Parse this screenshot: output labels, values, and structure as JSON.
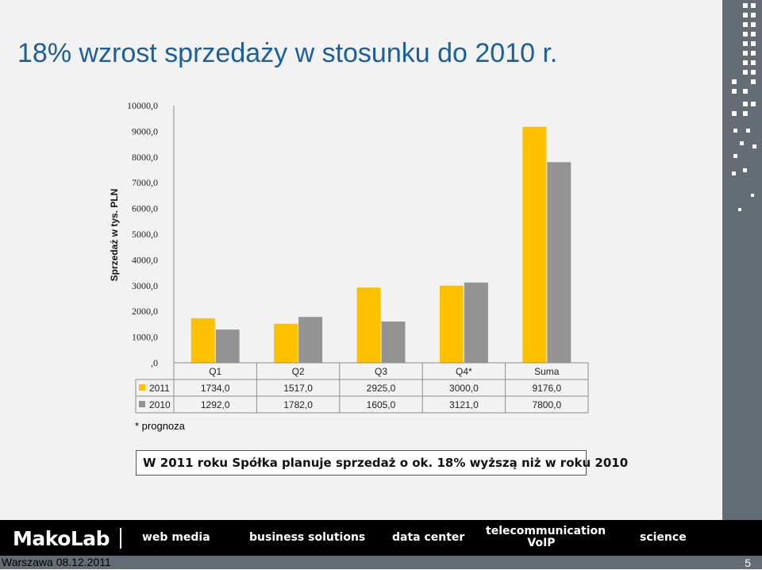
{
  "title": "18% wzrost sprzedaży w stosunku do 2010 r.",
  "colors": {
    "series2011": "#ffc000",
    "series2010": "#939393",
    "title": "#1a5f9c"
  },
  "chart_data": {
    "type": "bar",
    "ylabel": "Sprzedaż w tys. PLN",
    "ylim": [
      0,
      10000
    ],
    "ytick_labels": [
      "10000,0",
      "9000,0",
      "8000,0",
      "7000,0",
      "6000,0",
      "5000,0",
      "4000,0",
      "3000,0",
      "2000,0",
      "1000,0",
      ",0"
    ],
    "categories": [
      "Q1",
      "Q2",
      "Q3",
      "Q4*",
      "Suma"
    ],
    "series": [
      {
        "name": "2011",
        "values": [
          1734,
          1517,
          2925,
          3000,
          9176
        ],
        "labels": [
          "1734,0",
          "1517,0",
          "2925,0",
          "3000,0",
          "9176,0"
        ]
      },
      {
        "name": "2010",
        "values": [
          1292,
          1782,
          1605,
          3121,
          7800
        ],
        "labels": [
          "1292,0",
          "1782,0",
          "1605,0",
          "3121,0",
          "7800,0"
        ]
      }
    ],
    "legend": "data table",
    "grid": true
  },
  "footnote": "* prognoza",
  "callout": "W 2011 roku Spółka planuje sprzedaż o ok. 18% wyższą niż w roku 2010",
  "footer": {
    "logo": "MakoLab",
    "nav": [
      "web media",
      "business solutions",
      "data center",
      "telecommunication VoIP",
      "science"
    ],
    "date": "Warszawa 08.12.2011",
    "page": "5"
  }
}
